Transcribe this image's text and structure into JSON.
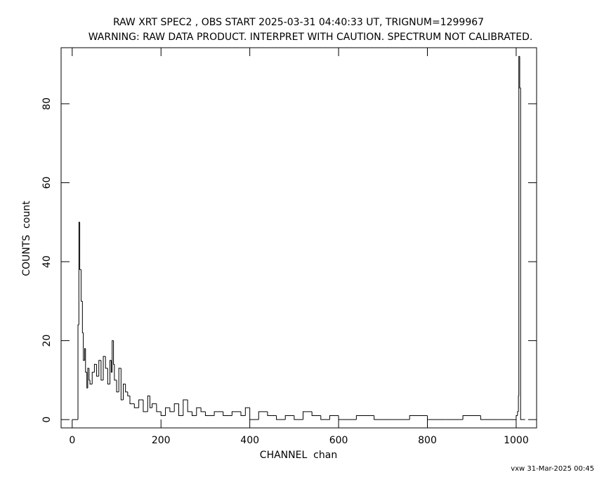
{
  "chart_data": {
    "type": "step",
    "title": "RAW XRT SPEC2 , OBS START 2025-03-31 04:40:33 UT, TRIGNUM=1299967",
    "subtitle": "WARNING: RAW DATA PRODUCT. INTERPRET WITH CAUTION. SPECTRUM NOT CALIBRATED.",
    "x_label": "CHANNEL  chan",
    "y_label": "COUNTS  count",
    "footer": "vxw 31-Mar-2025 00:45",
    "color": "#000000",
    "xlim": [
      -25,
      1046
    ],
    "ylim": [
      -2.1,
      94.2
    ],
    "xticks": [
      0,
      200,
      400,
      600,
      800,
      1000
    ],
    "yticks": [
      0,
      20,
      40,
      60,
      80
    ],
    "x": [
      0,
      10,
      13,
      15,
      17,
      20,
      23,
      25,
      28,
      30,
      33,
      35,
      38,
      40,
      45,
      50,
      55,
      60,
      65,
      70,
      75,
      80,
      85,
      88,
      90,
      93,
      95,
      100,
      105,
      110,
      115,
      120,
      125,
      130,
      140,
      150,
      160,
      170,
      175,
      180,
      190,
      200,
      210,
      220,
      230,
      240,
      250,
      260,
      270,
      280,
      290,
      300,
      320,
      340,
      360,
      380,
      390,
      400,
      420,
      440,
      460,
      480,
      500,
      520,
      540,
      560,
      580,
      600,
      640,
      680,
      720,
      760,
      800,
      840,
      880,
      920,
      960,
      990,
      1000,
      1003,
      1005,
      1006,
      1008,
      1010,
      1020
    ],
    "values": [
      0,
      0,
      24,
      50,
      38,
      30,
      22,
      15,
      18,
      12,
      8,
      13,
      10,
      9,
      12,
      14,
      11,
      15,
      10,
      16,
      13,
      9,
      15,
      12,
      20,
      14,
      10,
      7,
      13,
      5,
      9,
      7,
      6,
      4,
      3,
      5,
      2,
      6,
      3,
      4,
      2,
      1,
      3,
      2,
      4,
      1,
      5,
      2,
      1,
      3,
      2,
      1,
      2,
      1,
      2,
      1,
      3,
      0,
      2,
      1,
      0,
      1,
      0,
      2,
      1,
      0,
      1,
      0,
      1,
      0,
      0,
      1,
      0,
      0,
      1,
      0,
      0,
      0,
      1,
      2,
      6,
      92,
      84,
      0,
      0
    ]
  }
}
